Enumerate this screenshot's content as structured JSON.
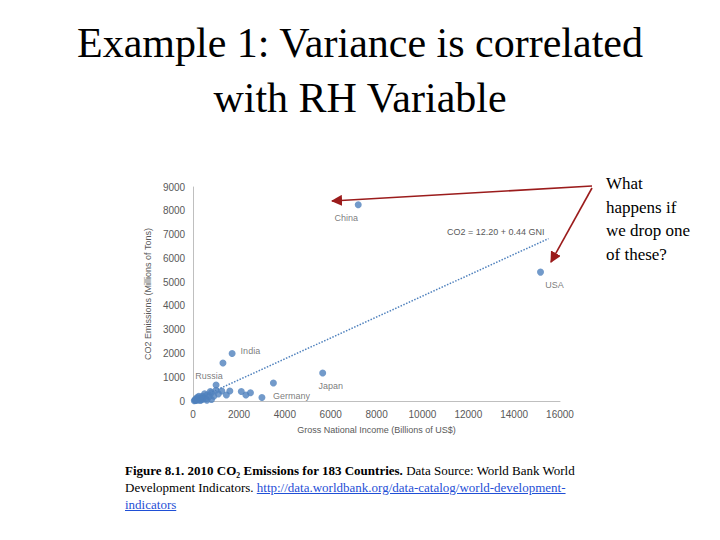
{
  "slide_title": "Example 1: Variance is correlated with RH Variable",
  "annotation": "What happens if we drop one of these?",
  "caption": {
    "title": "Figure 8.1. 2010 CO₂ Emissions for 183 Countries.",
    "text": "Data Source: World Bank World Development Indicators.",
    "url": "http://data.worldbank.org/data-catalog/world-development-indicators"
  },
  "chart_data": {
    "type": "scatter",
    "x_label": "Gross National Income (Billions of US$)",
    "y_label": "CO2 Emissions (Millions of Tons)",
    "x": [
      7200,
      15150,
      1700,
      1300,
      3500,
      5650,
      100,
      150,
      200,
      250,
      300,
      350,
      400,
      450,
      500,
      550,
      600,
      700,
      750,
      800,
      900,
      1000,
      1100,
      1250,
      1450,
      1600,
      2100,
      2300,
      2500,
      3000,
      50,
      80,
      120,
      180,
      250,
      320,
      420,
      600,
      800,
      1000
    ],
    "values": [
      8250,
      5420,
      2000,
      1600,
      760,
      1180,
      20,
      50,
      30,
      80,
      120,
      60,
      200,
      150,
      300,
      100,
      250,
      180,
      400,
      350,
      200,
      450,
      300,
      420,
      250,
      420,
      400,
      250,
      350,
      150,
      10,
      40,
      90,
      150,
      200,
      20,
      80,
      30,
      60,
      670
    ],
    "point_labels": [
      "China",
      "USA",
      "India",
      "Russia",
      "Germany",
      "Japan",
      null,
      null,
      null,
      null,
      null,
      null,
      null,
      null,
      null,
      null,
      null,
      null,
      null,
      null,
      null,
      null,
      null,
      null,
      null,
      null,
      null,
      null,
      null,
      null,
      null,
      null,
      null,
      null,
      null,
      null,
      null,
      null,
      null,
      null
    ],
    "color": "#4f81bd",
    "marker": "circle",
    "trend": {
      "type": "line",
      "equation": "CO2 = 12.20 + 0.44 GNI",
      "x": [
        0,
        15500
      ],
      "values": [
        12,
        6830
      ],
      "color": "#4f81bd",
      "line_style": "dotted"
    },
    "xlim": [
      0,
      16000
    ],
    "ylim": [
      0,
      9000
    ],
    "xticks": [
      0,
      2000,
      4000,
      6000,
      8000,
      10000,
      12000,
      14000,
      16000
    ],
    "yticks": [
      0,
      1000,
      2000,
      3000,
      4000,
      5000,
      6000,
      7000,
      8000,
      9000
    ],
    "grid": false
  }
}
